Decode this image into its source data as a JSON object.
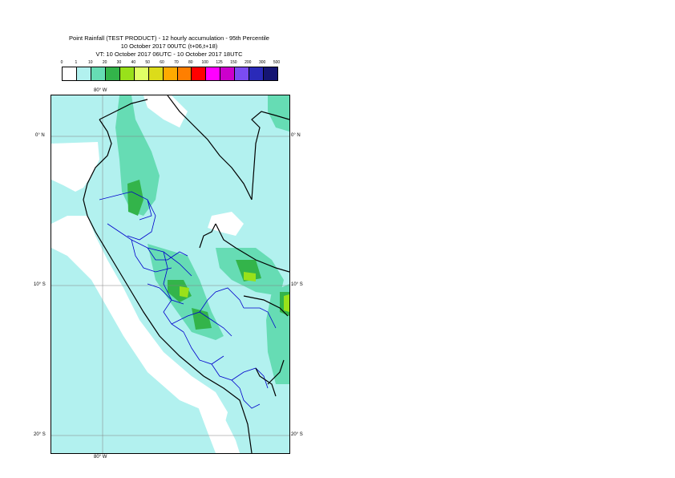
{
  "title": {
    "line1": "Point Rainfall (TEST PRODUCT) - 12 hourly accumulation - 95th Percentile",
    "line2": "10 October 2017 00UTC (t+06,t+18)",
    "line3": "VT: 10 October 2017 06UTC - 10 October 2017 18UTC"
  },
  "legend": {
    "thresholds": [
      "0",
      "1",
      "10",
      "20",
      "30",
      "40",
      "50",
      "60",
      "70",
      "80",
      "100",
      "125",
      "150",
      "200",
      "300",
      "500"
    ],
    "colors": [
      "#ffffff",
      "#b2f1ef",
      "#66dcb4",
      "#33b44a",
      "#99e11a",
      "#e1ff66",
      "#dcdc1a",
      "#ffaa00",
      "#ff7f00",
      "#ff0000",
      "#ff00ff",
      "#cc00cc",
      "#7b4cf2",
      "#2a2ab9",
      "#151573"
    ]
  },
  "map": {
    "lon_labels": {
      "top": "80° W",
      "bottom": "80° W"
    },
    "lat_labels": [
      {
        "left": "0° N",
        "right": "0° N"
      },
      {
        "left": "10° S",
        "right": "10° S"
      },
      {
        "left": "20° S",
        "right": "20° S"
      }
    ],
    "colors": {
      "ocean_land_base": "#b2f1ef",
      "dry": "#ffffff",
      "light": "#66dcb4",
      "moderate": "#33b44a",
      "heavier": "#99e11a",
      "coast": "#000000",
      "admin": "#0000cc",
      "grid": "#808080"
    }
  }
}
